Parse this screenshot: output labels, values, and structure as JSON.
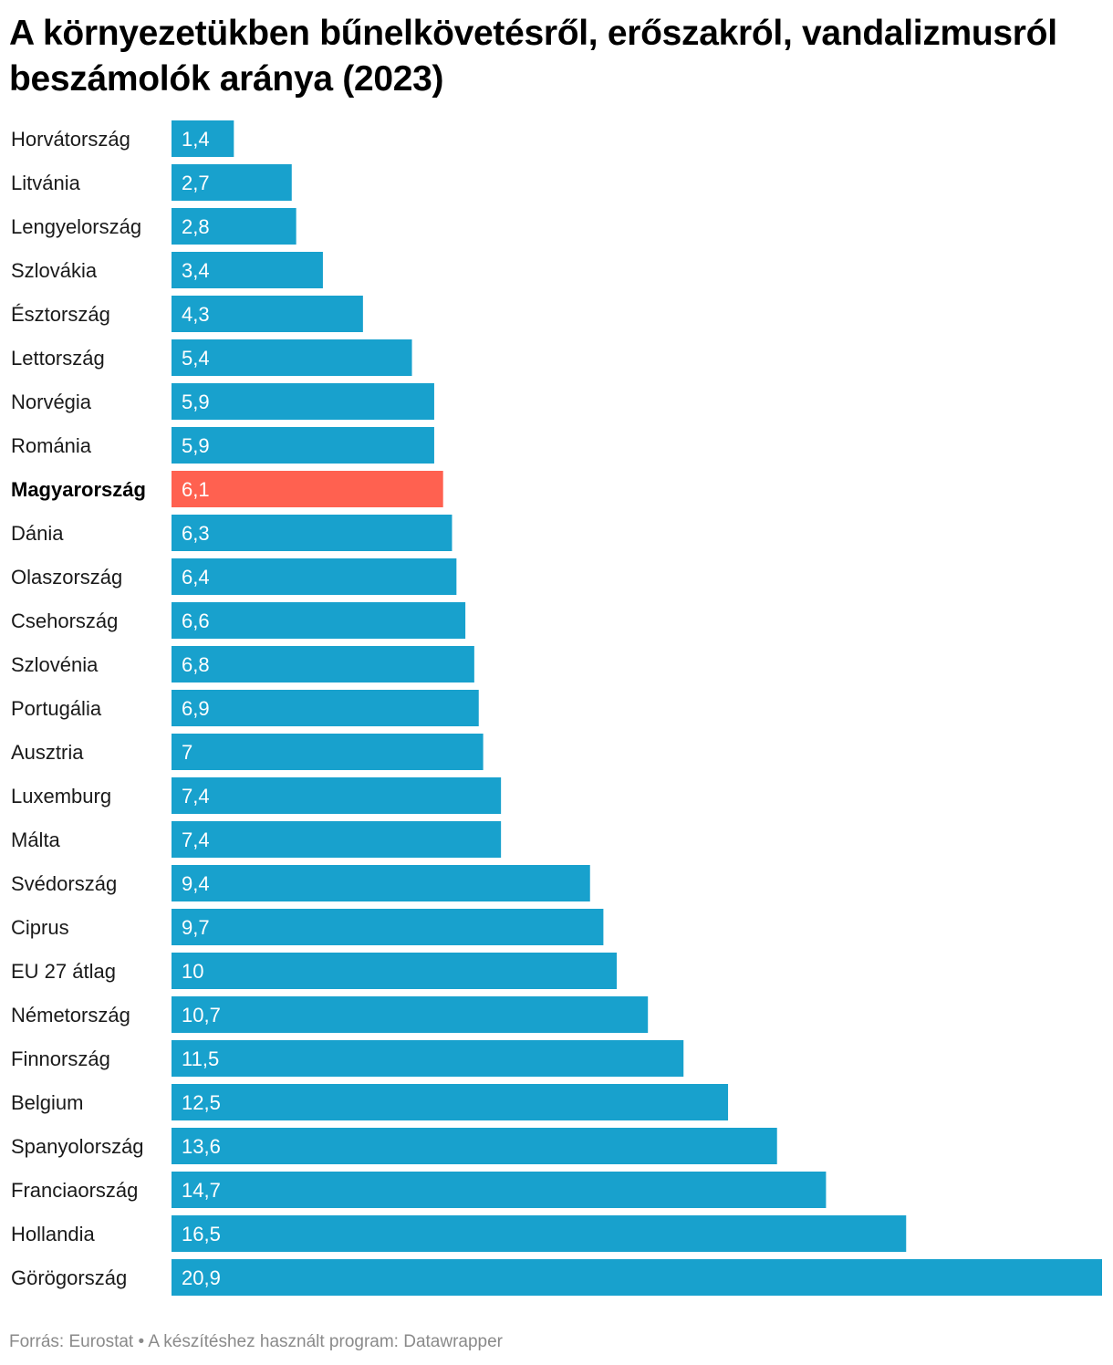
{
  "chart_data": {
    "type": "bar",
    "orientation": "horizontal",
    "title": "A környezetükben bűnelkövetésről, erőszakról, vandalizmusról beszámolók aránya (2023)",
    "categories": [
      "Horvátország",
      "Litvánia",
      "Lengyelország",
      "Szlovákia",
      "Észtország",
      "Lettország",
      "Norvégia",
      "Románia",
      "Magyarország",
      "Dánia",
      "Olaszország",
      "Csehország",
      "Szlovénia",
      "Portugália",
      "Ausztria",
      "Luxemburg",
      "Málta",
      "Svédország",
      "Ciprus",
      "EU 27 átlag",
      "Németország",
      "Finnország",
      "Belgium",
      "Spanyolország",
      "Franciaország",
      "Hollandia",
      "Görögország"
    ],
    "values": [
      1.4,
      2.7,
      2.8,
      3.4,
      4.3,
      5.4,
      5.9,
      5.9,
      6.1,
      6.3,
      6.4,
      6.6,
      6.8,
      6.9,
      7,
      7.4,
      7.4,
      9.4,
      9.7,
      10,
      10.7,
      11.5,
      12.5,
      13.6,
      14.7,
      16.5,
      20.9
    ],
    "value_labels": [
      "1,4",
      "2,7",
      "2,8",
      "3,4",
      "4,3",
      "5,4",
      "5,9",
      "5,9",
      "6,1",
      "6,3",
      "6,4",
      "6,6",
      "6,8",
      "6,9",
      "7",
      "7,4",
      "7,4",
      "9,4",
      "9,7",
      "10",
      "10,7",
      "11,5",
      "12,5",
      "13,6",
      "14,7",
      "16,5",
      "20,9"
    ],
    "highlight": "Magyarország",
    "xlim": [
      0,
      20.9
    ],
    "colors": {
      "bar": "#18a1cd",
      "highlight_bar": "#ff6150",
      "value_text": "#ffffff"
    }
  },
  "footer": {
    "text": "Forrás: Eurostat • A készítéshez használt program: Datawrapper"
  }
}
